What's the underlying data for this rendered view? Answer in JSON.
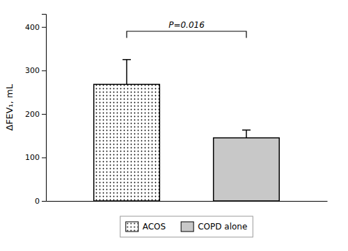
{
  "chart_data": {
    "type": "bar",
    "categories": [
      "ACOS",
      "COPD alone"
    ],
    "values": [
      268,
      145
    ],
    "errors_upper": [
      57,
      18
    ],
    "colors": [
      "#ffffff",
      "#c8c8c8"
    ],
    "ylabel": "ΔFEV₁, mL",
    "ylim": [
      0,
      430
    ],
    "yticks": [
      0,
      100,
      200,
      300,
      400
    ],
    "annotations": [
      {
        "text": "P=0.016",
        "y": 390,
        "drop": 15
      }
    ],
    "legend": "bottom",
    "tick_labels": "y",
    "grid": false
  }
}
